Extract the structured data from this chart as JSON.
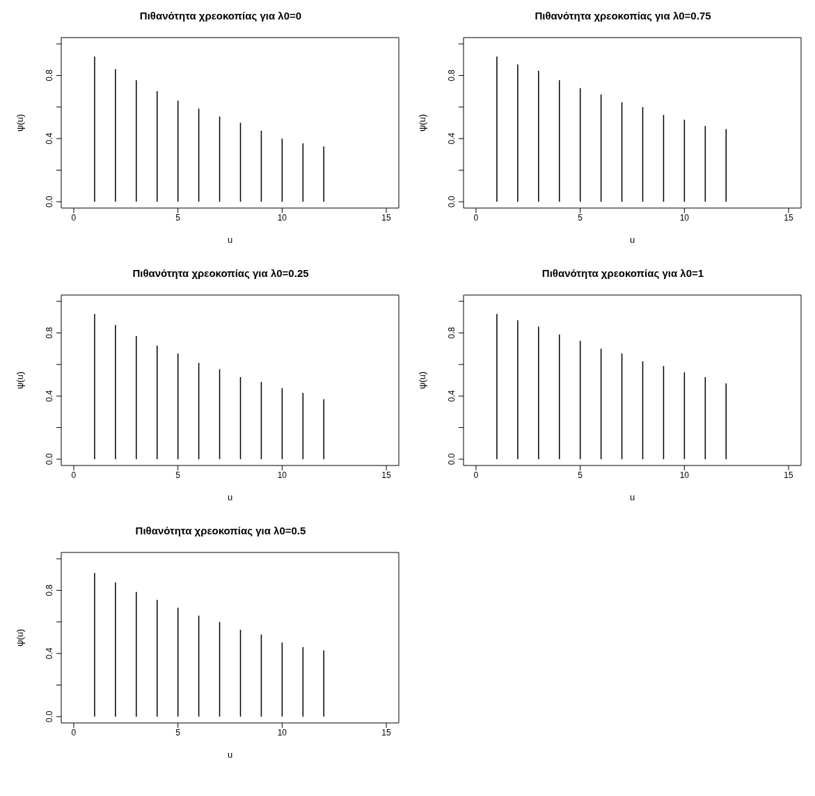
{
  "chart_data": [
    {
      "type": "bar",
      "title": "Πιθανότητα χρεοκοπίας για λ0=0",
      "xlabel": "u",
      "ylabel": "ψ(u)",
      "x": [
        1,
        2,
        3,
        4,
        5,
        6,
        7,
        8,
        9,
        10,
        11,
        12
      ],
      "values": [
        0.92,
        0.84,
        0.77,
        0.7,
        0.64,
        0.59,
        0.54,
        0.5,
        0.45,
        0.4,
        0.37,
        0.35
      ],
      "color": "#000000",
      "xlim": [
        -0.6,
        15.6
      ],
      "xticks": [
        0,
        5,
        10,
        15
      ],
      "ylim": [
        -0.04,
        1.04
      ],
      "yticks": [
        {
          "value": 0,
          "label": "0.0"
        },
        {
          "value": 0.2,
          "label": null
        },
        {
          "value": 0.4,
          "label": "0.4"
        },
        {
          "value": 0.6,
          "label": null
        },
        {
          "value": 0.8,
          "label": "0.8"
        },
        {
          "value": 1,
          "label": null
        }
      ]
    },
    {
      "type": "bar",
      "title": "Πιθανότητα χρεοκοπίας για λ0=0.75",
      "xlabel": "u",
      "ylabel": "ψ(u)",
      "x": [
        1,
        2,
        3,
        4,
        5,
        6,
        7,
        8,
        9,
        10,
        11,
        12
      ],
      "values": [
        0.92,
        0.87,
        0.83,
        0.77,
        0.72,
        0.68,
        0.63,
        0.6,
        0.55,
        0.52,
        0.48,
        0.46
      ],
      "color": "#000000",
      "xlim": [
        -0.6,
        15.6
      ],
      "xticks": [
        0,
        5,
        10,
        15
      ],
      "ylim": [
        -0.04,
        1.04
      ],
      "yticks": [
        {
          "value": 0,
          "label": "0.0"
        },
        {
          "value": 0.2,
          "label": null
        },
        {
          "value": 0.4,
          "label": "0.4"
        },
        {
          "value": 0.6,
          "label": null
        },
        {
          "value": 0.8,
          "label": "0.8"
        },
        {
          "value": 1,
          "label": null
        }
      ]
    },
    {
      "type": "bar",
      "title": "Πιθανότητα χρεοκοπίας για λ0=0.25",
      "xlabel": "u",
      "ylabel": "ψ(u)",
      "x": [
        1,
        2,
        3,
        4,
        5,
        6,
        7,
        8,
        9,
        10,
        11,
        12
      ],
      "values": [
        0.92,
        0.85,
        0.78,
        0.72,
        0.67,
        0.61,
        0.57,
        0.52,
        0.49,
        0.45,
        0.42,
        0.38
      ],
      "color": "#000000",
      "xlim": [
        -0.6,
        15.6
      ],
      "xticks": [
        0,
        5,
        10,
        15
      ],
      "ylim": [
        -0.04,
        1.04
      ],
      "yticks": [
        {
          "value": 0,
          "label": "0.0"
        },
        {
          "value": 0.2,
          "label": null
        },
        {
          "value": 0.4,
          "label": "0.4"
        },
        {
          "value": 0.6,
          "label": null
        },
        {
          "value": 0.8,
          "label": "0.8"
        },
        {
          "value": 1,
          "label": null
        }
      ]
    },
    {
      "type": "bar",
      "title": "Πιθανότητα χρεοκοπίας για λ0=1",
      "xlabel": "u",
      "ylabel": "ψ(u)",
      "x": [
        1,
        2,
        3,
        4,
        5,
        6,
        7,
        8,
        9,
        10,
        11,
        12
      ],
      "values": [
        0.92,
        0.88,
        0.84,
        0.79,
        0.75,
        0.7,
        0.67,
        0.62,
        0.59,
        0.55,
        0.52,
        0.48
      ],
      "color": "#000000",
      "xlim": [
        -0.6,
        15.6
      ],
      "xticks": [
        0,
        5,
        10,
        15
      ],
      "ylim": [
        -0.04,
        1.04
      ],
      "yticks": [
        {
          "value": 0,
          "label": "0.0"
        },
        {
          "value": 0.2,
          "label": null
        },
        {
          "value": 0.4,
          "label": "0.4"
        },
        {
          "value": 0.6,
          "label": null
        },
        {
          "value": 0.8,
          "label": "0.8"
        },
        {
          "value": 1,
          "label": null
        }
      ]
    },
    {
      "type": "bar",
      "title": "Πιθανότητα χρεοκοπίας για λ0=0.5",
      "xlabel": "u",
      "ylabel": "ψ(u)",
      "x": [
        1,
        2,
        3,
        4,
        5,
        6,
        7,
        8,
        9,
        10,
        11,
        12
      ],
      "values": [
        0.91,
        0.85,
        0.79,
        0.74,
        0.69,
        0.64,
        0.6,
        0.55,
        0.52,
        0.47,
        0.44,
        0.42
      ],
      "color": "#000000",
      "xlim": [
        -0.6,
        15.6
      ],
      "xticks": [
        0,
        5,
        10,
        15
      ],
      "ylim": [
        -0.04,
        1.04
      ],
      "yticks": [
        {
          "value": 0,
          "label": "0.0"
        },
        {
          "value": 0.2,
          "label": null
        },
        {
          "value": 0.4,
          "label": "0.4"
        },
        {
          "value": 0.6,
          "label": null
        },
        {
          "value": 0.8,
          "label": "0.8"
        },
        {
          "value": 1,
          "label": null
        }
      ]
    }
  ]
}
